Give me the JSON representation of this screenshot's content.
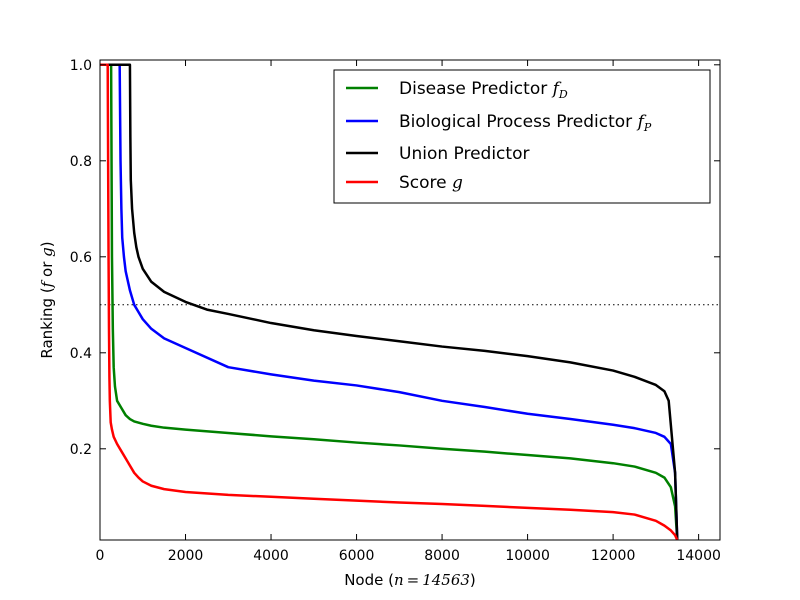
{
  "chart_data": {
    "type": "line",
    "xlabel_prefix": "Node (",
    "xlabel_math": "n = 14563",
    "xlabel_suffix": ")",
    "ylabel_prefix": "Ranking (",
    "ylabel_math_f": "f",
    "ylabel_or": " or ",
    "ylabel_math_g": "g",
    "ylabel_suffix": ")",
    "xlim": [
      0,
      14500
    ],
    "ylim": [
      0.01,
      1.01
    ],
    "xticks": [
      0,
      2000,
      4000,
      6000,
      8000,
      10000,
      12000,
      14000
    ],
    "xtick_labels": [
      "0",
      "2000",
      "4000",
      "6000",
      "8000",
      "10000",
      "12000",
      "14000"
    ],
    "yticks": [
      0.2,
      0.4,
      0.6,
      0.8,
      1.0
    ],
    "ytick_labels": [
      "0.2",
      "0.4",
      "0.6",
      "0.8",
      "1.0"
    ],
    "threshold": 0.5,
    "grid": false,
    "legend_position": "top-right",
    "series": [
      {
        "name": "Disease Predictor",
        "math": "f",
        "sub": "D",
        "color": "#008000",
        "x": [
          0,
          260,
          280,
          300,
          320,
          350,
          400,
          500,
          600,
          700,
          800,
          1000,
          1200,
          1500,
          2000,
          3000,
          4000,
          5000,
          6000,
          7000,
          8000,
          9000,
          10000,
          11000,
          12000,
          12500,
          13000,
          13200,
          13350,
          13450,
          13500
        ],
        "y": [
          1.0,
          1.0,
          0.6,
          0.45,
          0.37,
          0.33,
          0.3,
          0.285,
          0.27,
          0.262,
          0.257,
          0.252,
          0.248,
          0.244,
          0.24,
          0.233,
          0.226,
          0.22,
          0.213,
          0.207,
          0.2,
          0.194,
          0.187,
          0.18,
          0.17,
          0.163,
          0.15,
          0.14,
          0.12,
          0.08,
          0.01
        ]
      },
      {
        "name": "Biological Process Predictor",
        "math": "f",
        "sub": "P",
        "color": "#0000ff",
        "x": [
          0,
          460,
          480,
          500,
          520,
          560,
          600,
          700,
          800,
          900,
          1000,
          1200,
          1500,
          2000,
          3000,
          4000,
          5000,
          6000,
          7000,
          8000,
          9000,
          10000,
          11000,
          12000,
          12500,
          13000,
          13200,
          13350,
          13450,
          13500
        ],
        "y": [
          1.0,
          1.0,
          0.8,
          0.7,
          0.64,
          0.6,
          0.57,
          0.53,
          0.5,
          0.485,
          0.47,
          0.45,
          0.43,
          0.41,
          0.37,
          0.355,
          0.342,
          0.332,
          0.318,
          0.3,
          0.287,
          0.273,
          0.262,
          0.25,
          0.243,
          0.233,
          0.225,
          0.21,
          0.15,
          0.01
        ]
      },
      {
        "name": "Union Predictor",
        "math": "",
        "sub": "",
        "color": "#000000",
        "x": [
          0,
          700,
          710,
          720,
          750,
          800,
          850,
          900,
          1000,
          1200,
          1500,
          2000,
          2500,
          3000,
          4000,
          5000,
          6000,
          7000,
          8000,
          9000,
          10000,
          11000,
          12000,
          12500,
          13000,
          13200,
          13300,
          13350,
          13400,
          13450,
          13500
        ],
        "y": [
          1.0,
          1.0,
          0.85,
          0.76,
          0.7,
          0.65,
          0.62,
          0.6,
          0.575,
          0.548,
          0.527,
          0.506,
          0.49,
          0.481,
          0.462,
          0.447,
          0.435,
          0.424,
          0.413,
          0.404,
          0.393,
          0.38,
          0.363,
          0.35,
          0.333,
          0.32,
          0.3,
          0.25,
          0.2,
          0.15,
          0.01
        ]
      },
      {
        "name": "Score",
        "math": "g",
        "sub": "",
        "color": "#ff0000",
        "x": [
          0,
          180,
          190,
          200,
          210,
          220,
          230,
          250,
          280,
          320,
          400,
          500,
          600,
          700,
          800,
          900,
          1000,
          1200,
          1500,
          2000,
          3000,
          4000,
          5000,
          6000,
          7000,
          8000,
          9000,
          10000,
          11000,
          12000,
          12500,
          13000,
          13200,
          13350,
          13450,
          13500
        ],
        "y": [
          1.0,
          1.0,
          0.8,
          0.6,
          0.45,
          0.35,
          0.3,
          0.255,
          0.24,
          0.225,
          0.21,
          0.195,
          0.18,
          0.165,
          0.15,
          0.14,
          0.132,
          0.123,
          0.116,
          0.11,
          0.104,
          0.1,
          0.096,
          0.092,
          0.088,
          0.085,
          0.081,
          0.077,
          0.073,
          0.068,
          0.063,
          0.05,
          0.04,
          0.03,
          0.02,
          0.01
        ]
      }
    ]
  }
}
